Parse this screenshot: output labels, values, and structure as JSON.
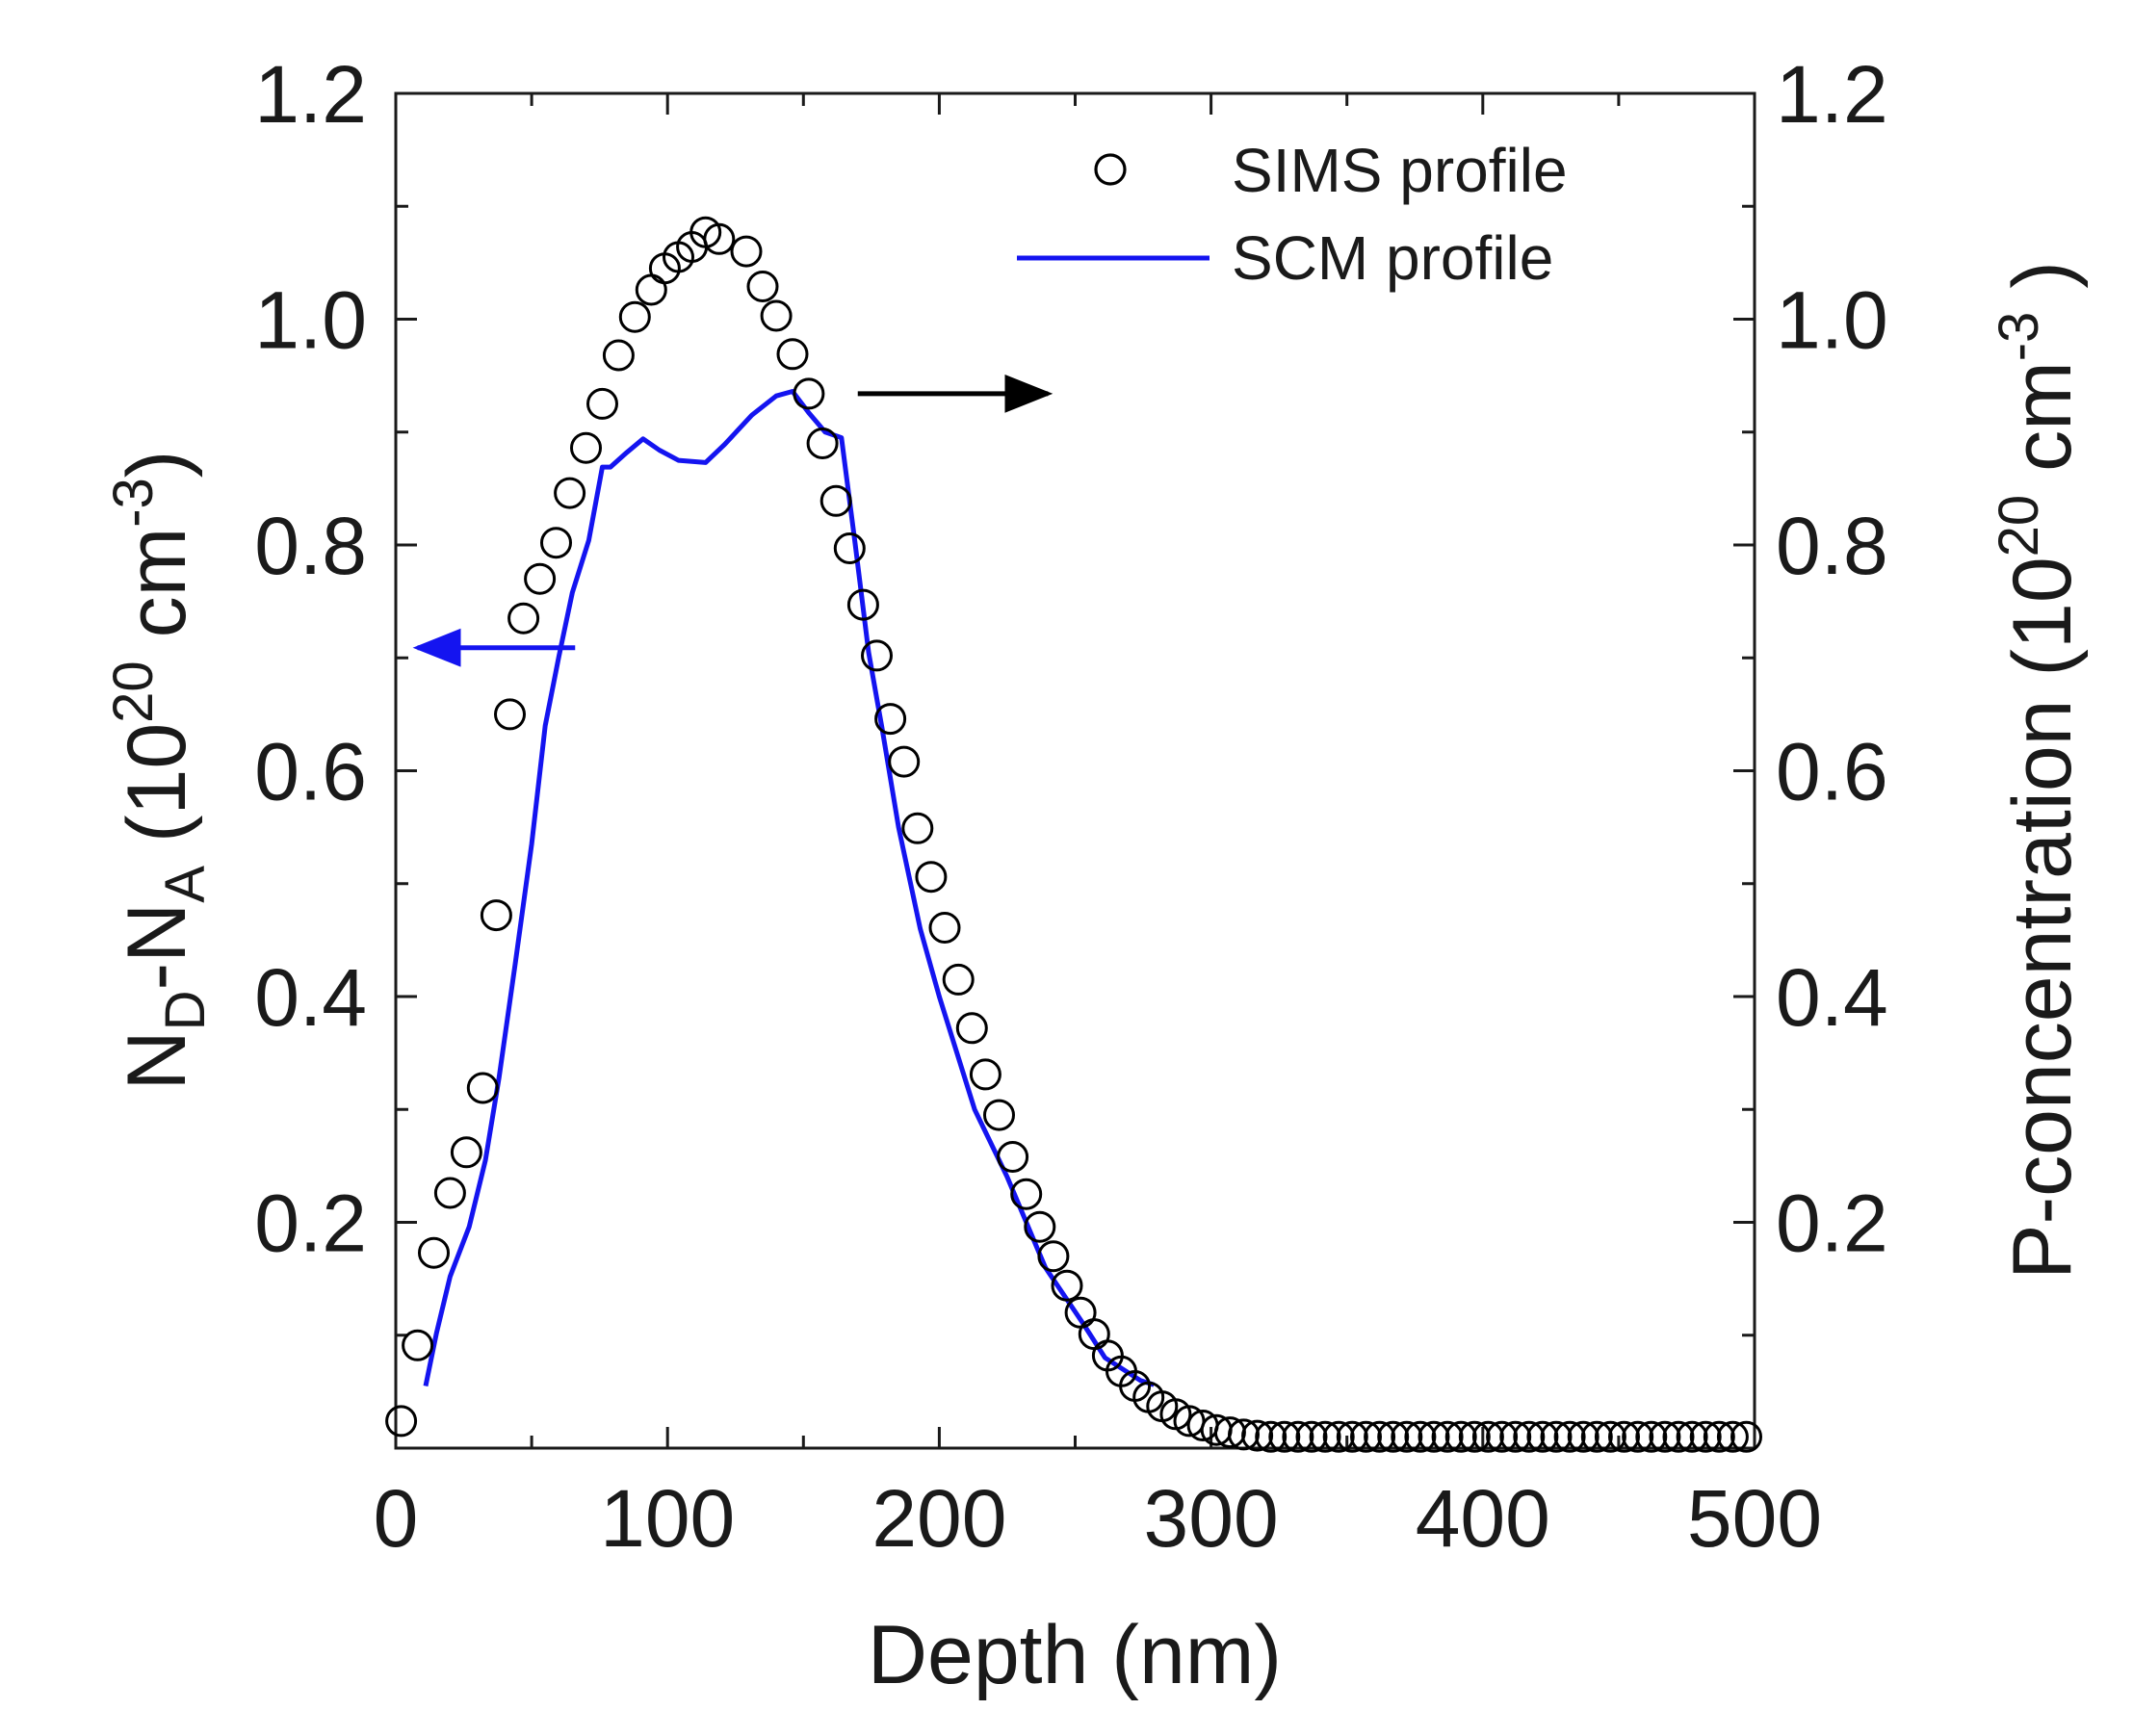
{
  "chart_data": {
    "type": "scatter",
    "title": "",
    "xlabel": "Depth (nm)",
    "ylabel_left": {
      "base": "N",
      "sub1": "D",
      "dash": "-N",
      "sub2": "A",
      "paren_open": " (10",
      "sup1": "20",
      "unit": " cm",
      "sup2": "-3",
      "paren_close": ")"
    },
    "ylabel_right": {
      "base": "P-concentration",
      "paren_open": " (10",
      "sup1": "20",
      "unit": " cm",
      "sup2": "-3",
      "paren_close": " )"
    },
    "xlim": [
      0,
      500
    ],
    "ylim": [
      0,
      1.2
    ],
    "x_ticks": [
      0,
      100,
      200,
      300,
      400,
      500
    ],
    "x_tick_labels": [
      "0",
      "100",
      "200",
      "300",
      "400",
      "500"
    ],
    "y_ticks": [
      0.2,
      0.4,
      0.6,
      0.8,
      1.0,
      1.2
    ],
    "y_tick_labels": [
      "0.2",
      "0.4",
      "0.6",
      "0.8",
      "1.0",
      "1.2"
    ],
    "grid": false,
    "legend_position": "top-right",
    "series": [
      {
        "name": "SIMS profile",
        "kind": "scatter",
        "marker": "open-circle",
        "axis": "right",
        "color": "#000000",
        "x": [
          2,
          8,
          14,
          20,
          26,
          32,
          37,
          42,
          47,
          53,
          59,
          64,
          70,
          76,
          82,
          88,
          94,
          99,
          104,
          109,
          114,
          119,
          129,
          135,
          140,
          146,
          152,
          157,
          162,
          167,
          172,
          177,
          182,
          187,
          192,
          197,
          202,
          207,
          212,
          217,
          222,
          227,
          232,
          237,
          242,
          247,
          252,
          257,
          262,
          267,
          272,
          277,
          282,
          287,
          292,
          297,
          302,
          307,
          312,
          317,
          322,
          327,
          332,
          337,
          342,
          347,
          352,
          357,
          362,
          367,
          372,
          377,
          382,
          387,
          392,
          397,
          402,
          407,
          412,
          417,
          422,
          427,
          432,
          437,
          442,
          447,
          452,
          457,
          462,
          467,
          472,
          477,
          482,
          487,
          492,
          497
        ],
        "y": [
          0.024,
          0.091,
          0.173,
          0.226,
          0.262,
          0.319,
          0.472,
          0.65,
          0.735,
          0.77,
          0.802,
          0.846,
          0.886,
          0.925,
          0.968,
          1.002,
          1.026,
          1.045,
          1.055,
          1.064,
          1.077,
          1.071,
          1.06,
          1.029,
          1.003,
          0.969,
          0.934,
          0.89,
          0.839,
          0.797,
          0.747,
          0.702,
          0.646,
          0.608,
          0.549,
          0.506,
          0.461,
          0.415,
          0.372,
          0.331,
          0.295,
          0.258,
          0.225,
          0.196,
          0.17,
          0.144,
          0.12,
          0.101,
          0.082,
          0.068,
          0.055,
          0.045,
          0.037,
          0.03,
          0.024,
          0.02,
          0.016,
          0.014,
          0.012,
          0.011,
          0.01,
          0.01,
          0.01,
          0.01,
          0.01,
          0.01,
          0.01,
          0.01,
          0.01,
          0.01,
          0.01,
          0.01,
          0.01,
          0.01,
          0.01,
          0.01,
          0.01,
          0.01,
          0.01,
          0.01,
          0.01,
          0.01,
          0.01,
          0.01,
          0.01,
          0.01,
          0.01,
          0.01,
          0.01,
          0.01,
          0.01,
          0.01,
          0.01,
          0.01,
          0.01,
          0.01
        ]
      },
      {
        "name": "SCM profile",
        "kind": "line",
        "axis": "left",
        "color": "#1414f0",
        "x": [
          11,
          15,
          20,
          27,
          33,
          38,
          44,
          50,
          55,
          60,
          65,
          71,
          76,
          79,
          85,
          91,
          97,
          104,
          114,
          121,
          131,
          140,
          146,
          152,
          158,
          164,
          169,
          174,
          179,
          185,
          193,
          200,
          213,
          225,
          239,
          253,
          261,
          274,
          279
        ],
        "y": [
          0.055,
          0.102,
          0.152,
          0.196,
          0.255,
          0.328,
          0.43,
          0.535,
          0.64,
          0.701,
          0.758,
          0.804,
          0.869,
          0.869,
          0.882,
          0.894,
          0.884,
          0.875,
          0.873,
          0.889,
          0.915,
          0.932,
          0.936,
          0.917,
          0.9,
          0.895,
          0.802,
          0.705,
          0.637,
          0.55,
          0.46,
          0.4,
          0.3,
          0.24,
          0.16,
          0.11,
          0.08,
          0.06,
          0.056
        ]
      }
    ],
    "annotations": [
      {
        "type": "arrow",
        "direction": "left",
        "series": "SCM profile",
        "y": 0.709,
        "x_from": 66,
        "x_to": 8,
        "color": "#1414f0",
        "meaning": "SCM profile uses left axis"
      },
      {
        "type": "arrow",
        "direction": "right",
        "series": "SIMS profile",
        "y": 0.934,
        "x_from": 170,
        "x_to": 240,
        "color": "#000000",
        "meaning": "SIMS profile uses right axis"
      }
    ]
  }
}
